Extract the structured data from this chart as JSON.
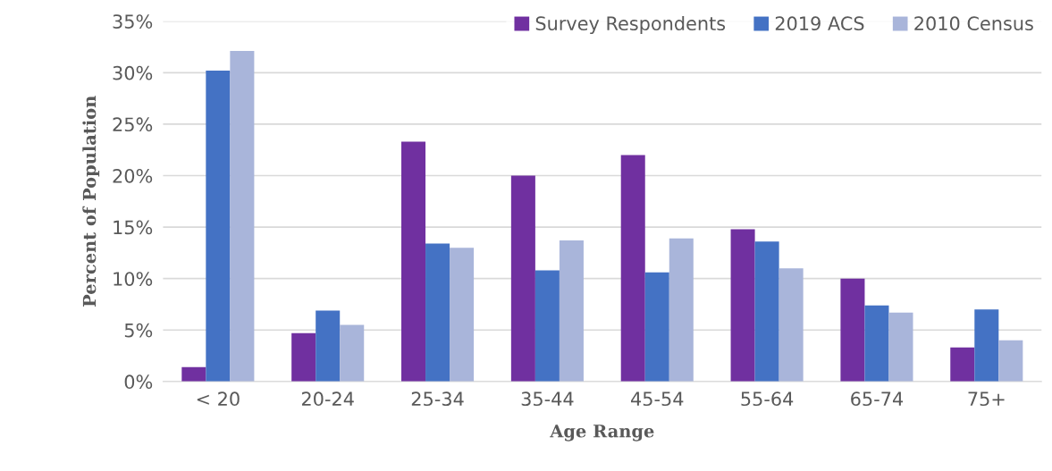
{
  "chart_data": {
    "type": "bar",
    "xlabel": "Age Range",
    "ylabel": "Percent of Population",
    "categories": [
      "< 20",
      "20-24",
      "25-34",
      "35-44",
      "45-54",
      "55-64",
      "65-74",
      "75+"
    ],
    "series": [
      {
        "name": "Survey Respondents",
        "color": "#7030a0",
        "values": [
          1.4,
          4.7,
          23.3,
          20.0,
          22.0,
          14.8,
          10.0,
          3.3
        ]
      },
      {
        "name": "2019 ACS",
        "color": "#4472c4",
        "values": [
          30.2,
          6.9,
          13.4,
          10.8,
          10.6,
          13.6,
          7.4,
          7.0
        ]
      },
      {
        "name": "2010 Census",
        "color": "#a9b5da",
        "values": [
          32.1,
          5.5,
          13.0,
          13.7,
          13.9,
          11.0,
          6.7,
          4.0
        ]
      }
    ],
    "ylim": [
      0,
      35
    ],
    "yticks": [
      {
        "value": 0,
        "label": "0%"
      },
      {
        "value": 5,
        "label": "5%"
      },
      {
        "value": 10,
        "label": "10%"
      },
      {
        "value": 15,
        "label": "15%"
      },
      {
        "value": 20,
        "label": "20%"
      },
      {
        "value": 25,
        "label": "25%"
      },
      {
        "value": 30,
        "label": "30%"
      },
      {
        "value": 35,
        "label": "35%"
      }
    ],
    "grid": "y",
    "legend": "top right"
  }
}
